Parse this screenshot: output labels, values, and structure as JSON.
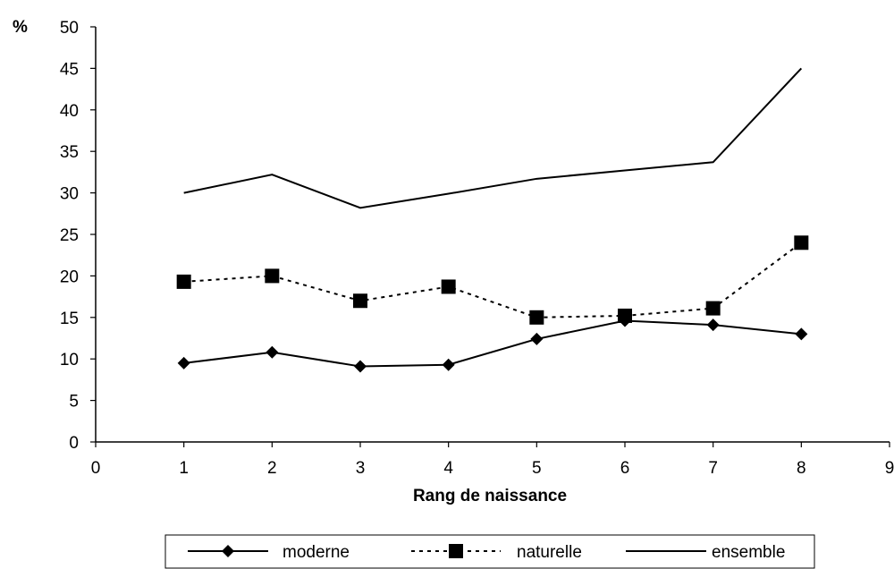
{
  "chart_data": {
    "type": "line",
    "xlabel": "Rang de naissance",
    "ylabel": "%",
    "xlim": [
      0,
      9
    ],
    "ylim": [
      0,
      50
    ],
    "xticks": [
      "0",
      "1",
      "2",
      "3",
      "4",
      "5",
      "6",
      "7",
      "8",
      "9"
    ],
    "yticks": [
      "0",
      "5",
      "10",
      "15",
      "20",
      "25",
      "30",
      "35",
      "40",
      "45",
      "50"
    ],
    "x": [
      1,
      2,
      3,
      4,
      5,
      6,
      7,
      8
    ],
    "grid": false,
    "legend_position": "bottom",
    "series": [
      {
        "name": "moderne",
        "values": [
          9.5,
          10.8,
          9.1,
          9.3,
          12.4,
          14.6,
          14.1,
          13.0
        ],
        "marker": "diamond",
        "line": "solid",
        "color": "#000000"
      },
      {
        "name": "naturelle",
        "values": [
          19.3,
          20.0,
          17.0,
          18.7,
          15.0,
          15.2,
          16.1,
          24.0
        ],
        "marker": "square",
        "line": "dotted",
        "color": "#000000"
      },
      {
        "name": "ensemble",
        "values": [
          30.0,
          32.2,
          28.2,
          29.9,
          31.7,
          32.7,
          33.7,
          45.0
        ],
        "marker": "none",
        "line": "solid",
        "color": "#000000"
      }
    ]
  }
}
